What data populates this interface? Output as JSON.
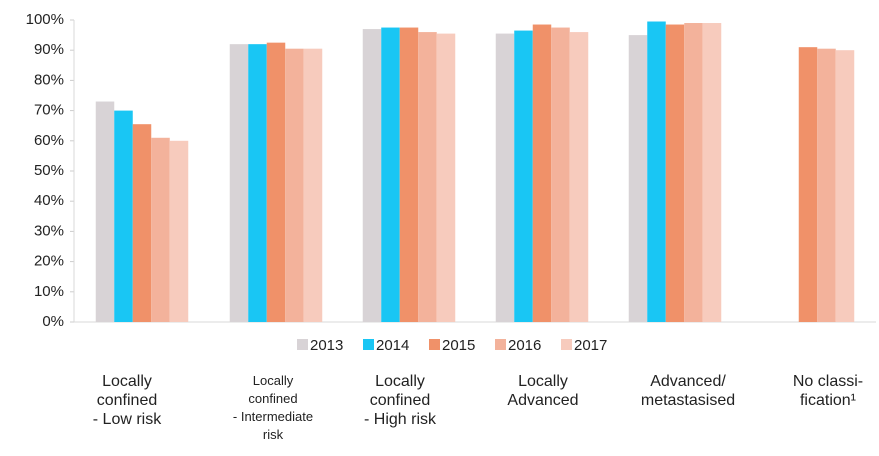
{
  "chart_data": {
    "type": "bar",
    "categories": [
      "Locally\nconfined\n- Low risk",
      "Locally\nconfined\n- Intermediate\nrisk",
      "Locally\nconfined\n- High risk",
      "Locally\nAdvanced",
      "Advanced/\nmetastasised",
      "No classi-\nfication¹"
    ],
    "series": [
      {
        "name": "2013",
        "color": "#d8d3d6",
        "values": [
          73,
          92,
          97,
          95.5,
          95,
          null
        ]
      },
      {
        "name": "2014",
        "color": "#19c6f4",
        "values": [
          70,
          92,
          97.5,
          96.5,
          99.5,
          null
        ]
      },
      {
        "name": "2015",
        "color": "#f09169",
        "values": [
          65.5,
          92.5,
          97.5,
          98.5,
          98.5,
          91
        ]
      },
      {
        "name": "2016",
        "color": "#f3b29b",
        "values": [
          61,
          90.5,
          96,
          97.5,
          99,
          90.5
        ]
      },
      {
        "name": "2017",
        "color": "#f7cbbd",
        "values": [
          60,
          90.5,
          95.5,
          96,
          99,
          90
        ]
      }
    ],
    "ylim": [
      0,
      100
    ],
    "yticks": [
      {
        "value": 0,
        "label": "0%"
      },
      {
        "value": 10,
        "label": "10%"
      },
      {
        "value": 20,
        "label": "20%"
      },
      {
        "value": 30,
        "label": "30%"
      },
      {
        "value": 40,
        "label": "40%"
      },
      {
        "value": 50,
        "label": "50%"
      },
      {
        "value": 60,
        "label": "60%"
      },
      {
        "value": 70,
        "label": "70%"
      },
      {
        "value": 80,
        "label": "80%"
      },
      {
        "value": 90,
        "label": "90%"
      },
      {
        "value": 100,
        "label": "100%"
      }
    ],
    "grid": false,
    "legend": "bottom"
  }
}
